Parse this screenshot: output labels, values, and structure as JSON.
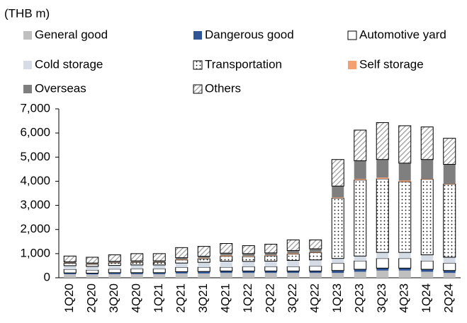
{
  "chart_data": {
    "type": "stacked_bar",
    "unit_label": "(THB m)",
    "categories": [
      "1Q20",
      "2Q20",
      "3Q20",
      "4Q20",
      "1Q21",
      "2Q21",
      "3Q21",
      "4Q21",
      "1Q22",
      "2Q22",
      "3Q22",
      "4Q22",
      "1Q23",
      "2Q23",
      "3Q23",
      "4Q23",
      "1Q24",
      "2Q24"
    ],
    "series": [
      {
        "name": "General good",
        "color": "#bfbfbf",
        "values": [
          150,
          140,
          150,
          150,
          150,
          180,
          180,
          200,
          200,
          200,
          200,
          200,
          200,
          250,
          300,
          300,
          250,
          200
        ]
      },
      {
        "name": "Dangerous good",
        "color": "#2f5597",
        "values": [
          50,
          50,
          60,
          60,
          60,
          70,
          80,
          80,
          80,
          80,
          80,
          80,
          100,
          100,
          100,
          100,
          100,
          100
        ]
      },
      {
        "name": "Automotive yard",
        "color": "#ffffff",
        "values": [
          150,
          130,
          150,
          160,
          160,
          180,
          180,
          160,
          180,
          180,
          180,
          200,
          300,
          350,
          400,
          400,
          350,
          300
        ]
      },
      {
        "name": "Cold storage",
        "color": "#d6dce5",
        "values": [
          150,
          150,
          150,
          160,
          160,
          180,
          200,
          250,
          220,
          230,
          260,
          260,
          200,
          200,
          250,
          250,
          250,
          250
        ]
      },
      {
        "name": "Transportation",
        "color": "dots",
        "values": [
          100,
          90,
          110,
          110,
          110,
          130,
          150,
          200,
          200,
          220,
          260,
          300,
          2500,
          3150,
          3050,
          2930,
          3130,
          3030
        ]
      },
      {
        "name": "Self storage",
        "color": "#f4a070",
        "values": [
          10,
          10,
          10,
          10,
          10,
          20,
          20,
          30,
          20,
          20,
          30,
          20,
          30,
          40,
          50,
          50,
          20,
          20
        ]
      },
      {
        "name": "Overseas",
        "color": "#7f7f7f",
        "values": [
          50,
          40,
          50,
          50,
          50,
          70,
          80,
          100,
          100,
          100,
          120,
          140,
          470,
          760,
          750,
          720,
          800,
          800
        ]
      },
      {
        "name": "Others",
        "color": "hatch",
        "values": [
          240,
          240,
          270,
          300,
          300,
          420,
          410,
          400,
          330,
          360,
          440,
          370,
          1100,
          1270,
          1530,
          1550,
          1350,
          1080
        ]
      }
    ],
    "ylim": [
      0,
      7000
    ],
    "yticks": [
      0,
      {
        "value": 1000,
        "label": "1,000"
      },
      {
        "value": 2000,
        "label": "2,000"
      },
      {
        "value": 3000,
        "label": "3,000"
      },
      {
        "value": 4000,
        "label": "4,000"
      },
      {
        "value": 5000,
        "label": "5,000"
      },
      {
        "value": 6000,
        "label": "6,000"
      },
      {
        "value": 7000,
        "label": "7,000"
      }
    ]
  }
}
